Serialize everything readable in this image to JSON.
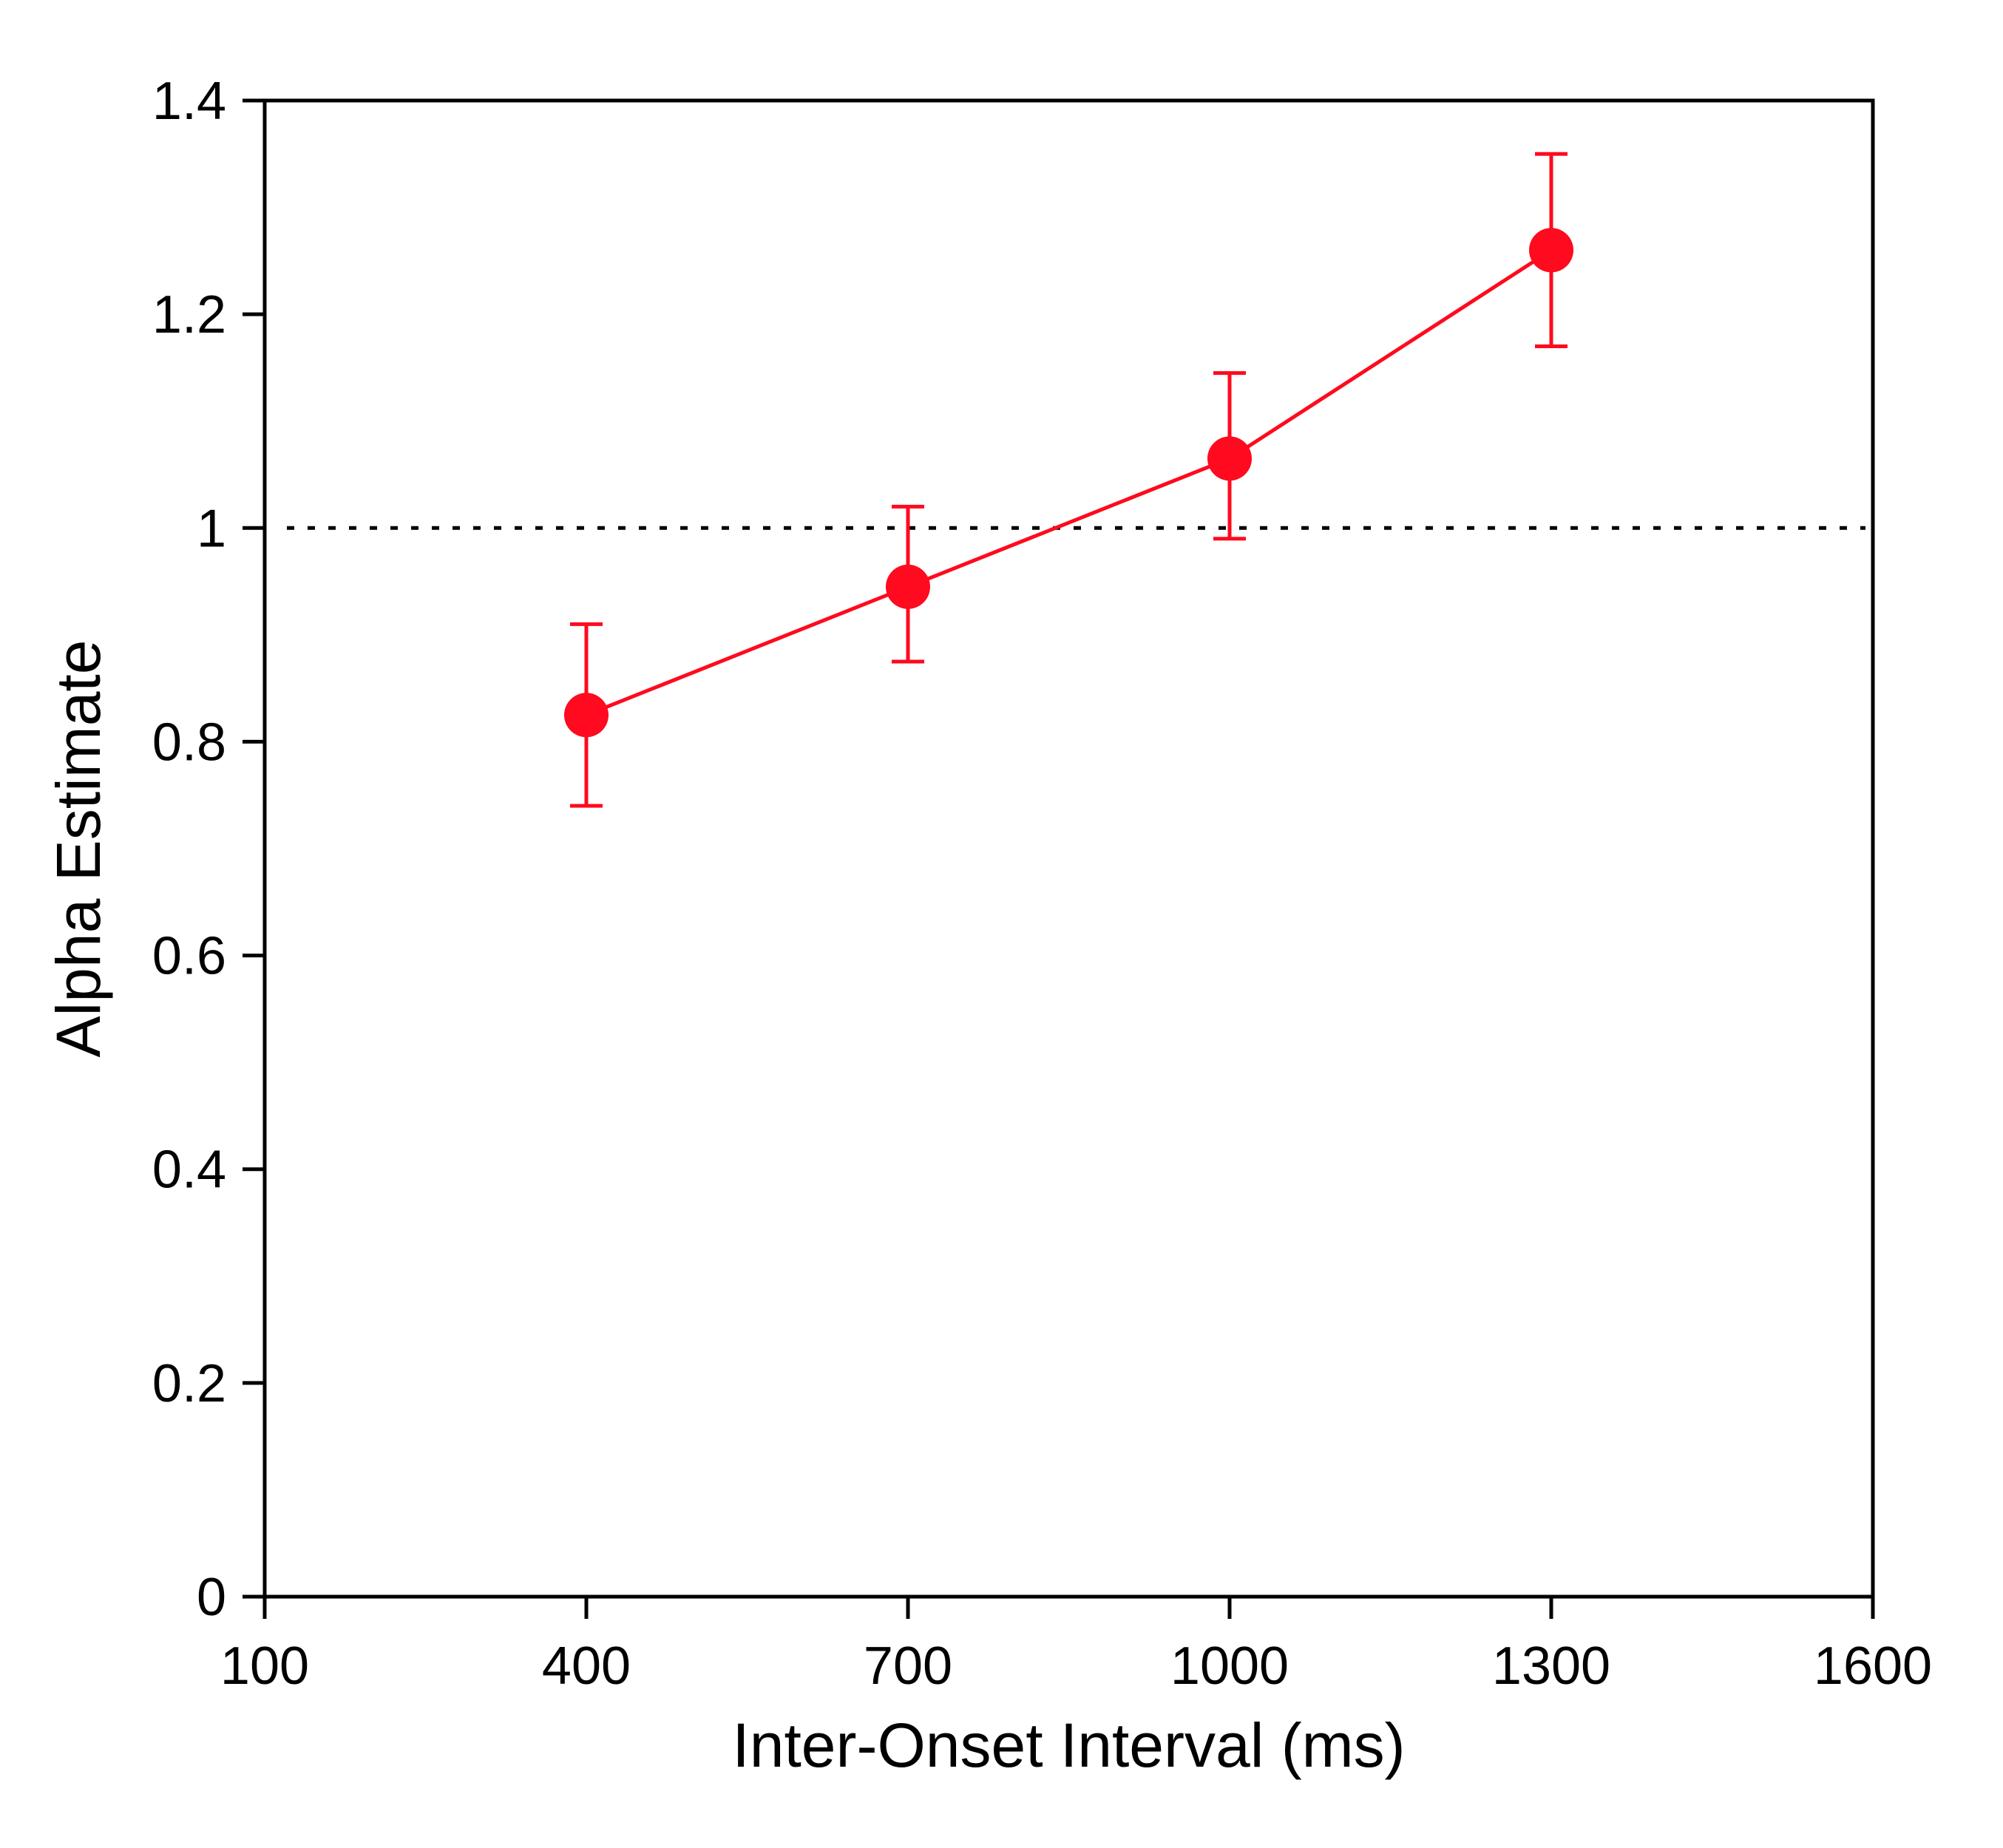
{
  "chart_data": {
    "type": "line",
    "title": "",
    "xlabel": "Inter-Onset Interval (ms)",
    "ylabel": "Alpha Estimate",
    "xlim": [
      100,
      1600
    ],
    "ylim": [
      0,
      1.4
    ],
    "x_ticks": [
      "100",
      "400",
      "700",
      "1000",
      "1300",
      "1600"
    ],
    "y_ticks": [
      "0",
      "0.2",
      "0.4",
      "0.6",
      "0.8",
      "1",
      "1.2",
      "1.4"
    ],
    "grid": false,
    "reference_line": {
      "y": 1,
      "style": "dotted",
      "color": "#000000"
    },
    "series": [
      {
        "color": "#ff0a1e",
        "points": [
          {
            "x": 400,
            "y": 0.825,
            "err_low": 0.74,
            "err_high": 0.91
          },
          {
            "x": 700,
            "y": 0.945,
            "err_low": 0.875,
            "err_high": 1.02
          },
          {
            "x": 1000,
            "y": 1.065,
            "err_low": 0.99,
            "err_high": 1.145
          },
          {
            "x": 1300,
            "y": 1.26,
            "err_low": 1.17,
            "err_high": 1.35
          }
        ]
      }
    ]
  }
}
